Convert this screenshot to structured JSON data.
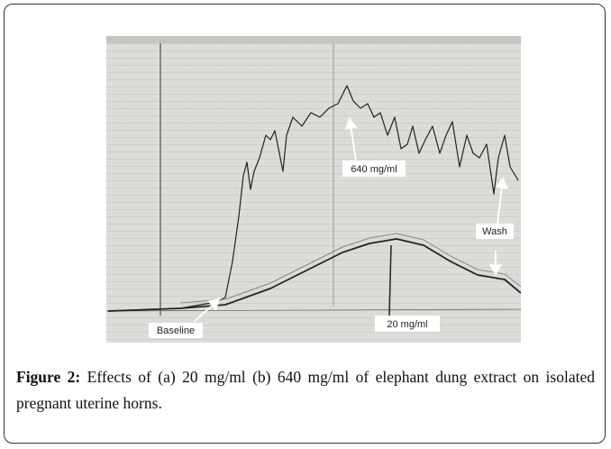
{
  "figure": {
    "labels": {
      "high_dose": "640 mg/ml",
      "wash": "Wash",
      "baseline": "Baseline",
      "low_dose": "20 mg/ml"
    },
    "caption": {
      "label": "Figure 2:",
      "text": "Effects of (a) 20 mg/ml (b) 640 mg/ml of elephant dung extract on isolated pregnant uterine horns."
    }
  }
}
